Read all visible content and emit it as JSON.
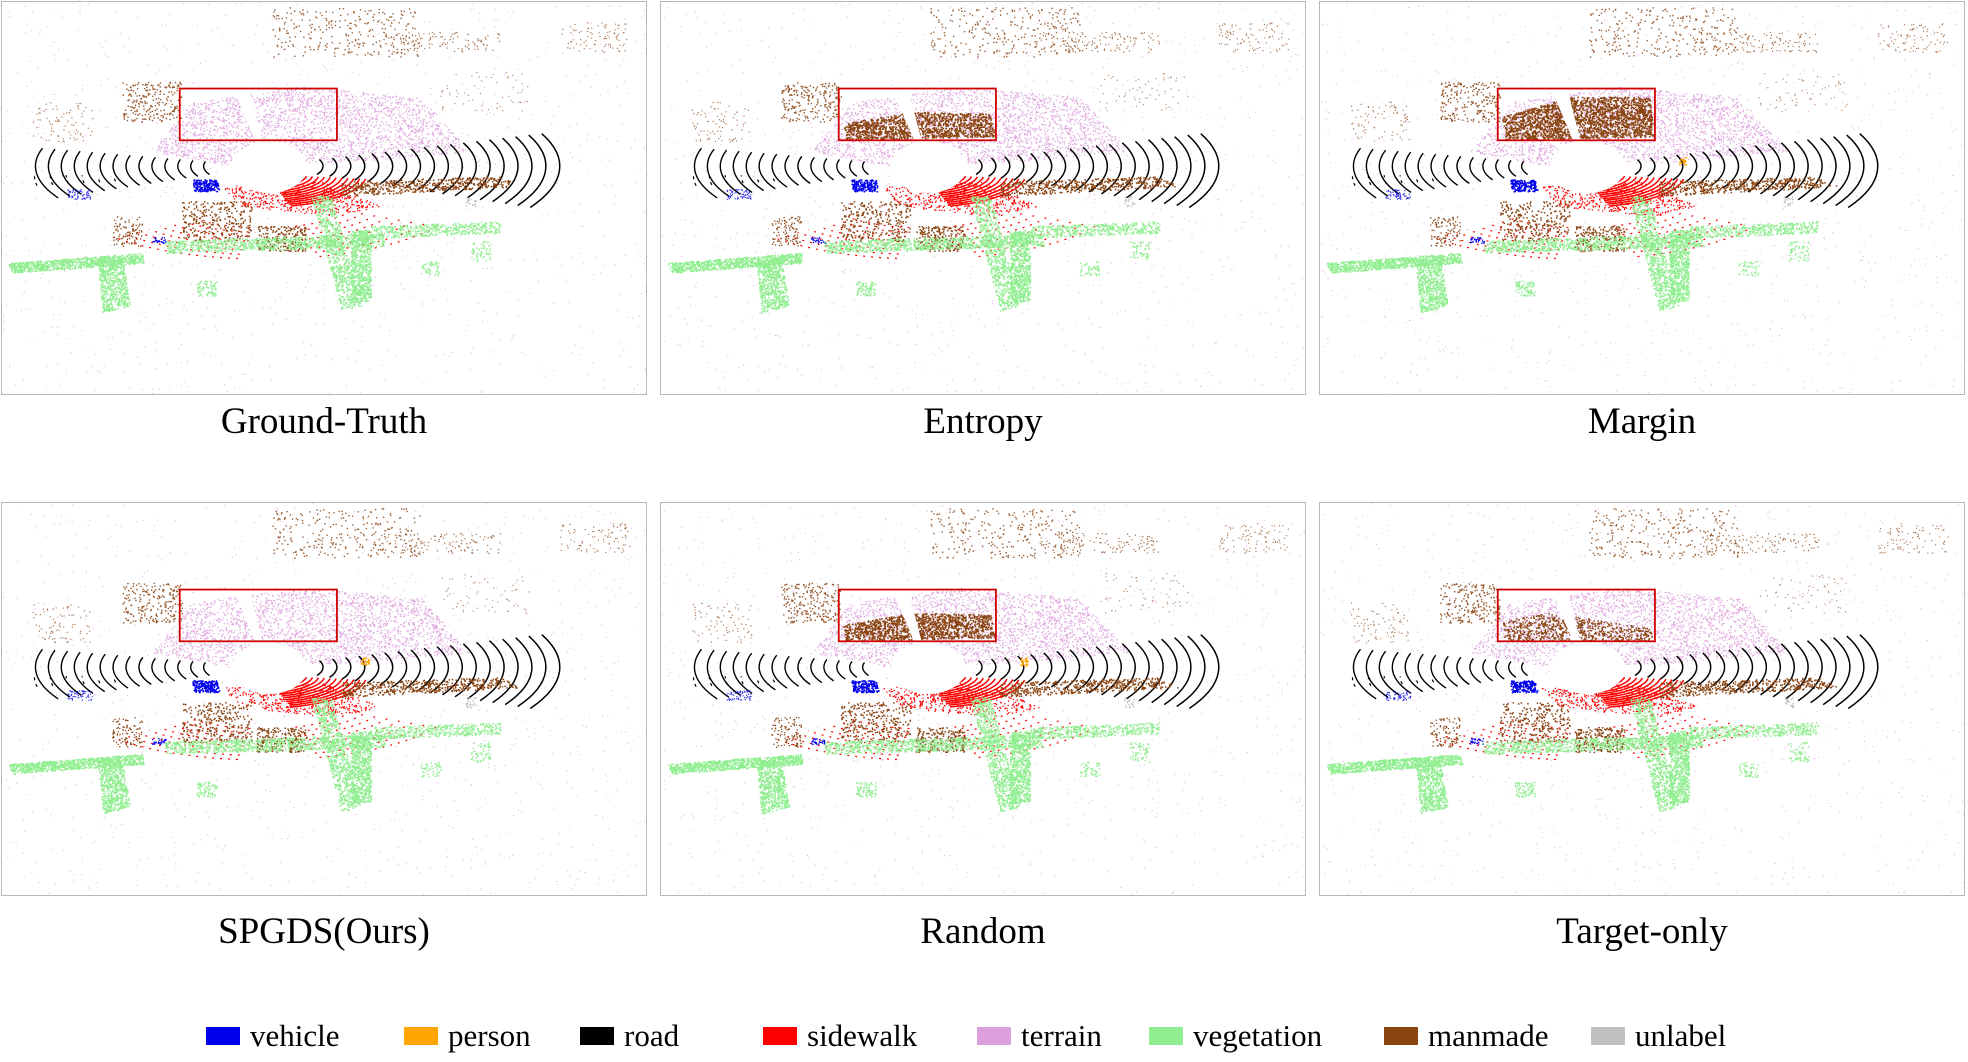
{
  "panels": [
    {
      "id": "gt",
      "caption": "Ground-Truth",
      "boxFill": "none",
      "person": false
    },
    {
      "id": "entropy",
      "caption": "Entropy",
      "boxFill": "manmade",
      "person": false
    },
    {
      "id": "margin",
      "caption": "Margin",
      "boxFill": "manmade-heavy",
      "person": true
    },
    {
      "id": "ours",
      "caption": "SPGDS(Ours)",
      "boxFill": "none",
      "person": true
    },
    {
      "id": "random",
      "caption": "Random",
      "boxFill": "manmade",
      "person": true
    },
    {
      "id": "target",
      "caption": "Target-only",
      "boxFill": "manmade-light",
      "person": false
    }
  ],
  "legend": [
    {
      "label": "vehicle",
      "color": "#0000ee"
    },
    {
      "label": "person",
      "color": "#ffa500"
    },
    {
      "label": "road",
      "color": "#000000"
    },
    {
      "label": "sidewalk",
      "color": "#ff0000"
    },
    {
      "label": "terrain",
      "color": "#dda0dd"
    },
    {
      "label": "vegetation",
      "color": "#90ee90"
    },
    {
      "label": "manmade",
      "color": "#8b4513"
    },
    {
      "label": "unlabel",
      "color": "#c0c0c0"
    }
  ],
  "colors": {
    "highlight_box": "#d00000"
  }
}
